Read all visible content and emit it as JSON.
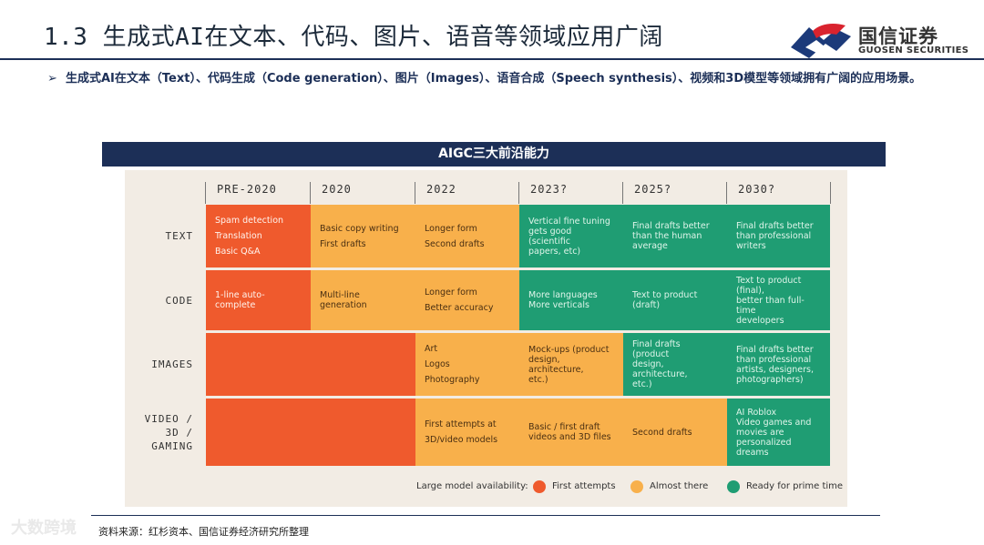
{
  "slide": {
    "title": "1.3 生成式AI在文本、代码、图片、语音等领域应用广阔",
    "bullet": "生成式AI在文本（Text）、代码生成（Code generation）、图片（Images）、语音合成（Speech synthesis）、视频和3D模型等领域拥有广阔的应用场景。",
    "bullet_marker": "➢",
    "source": "资料来源：红杉资本、国信证券经济研究所整理",
    "watermark": "大数跨境"
  },
  "logo": {
    "name_cn": "国信证券",
    "name_en": "GUOSEN SECURITIES",
    "colors": {
      "blue": "#1c3a7a",
      "red": "#d9232e"
    }
  },
  "panel": {
    "title": "AIGC三大前沿能力",
    "columns": [
      "PRE-2020",
      "2020",
      "2022",
      "2023?",
      "2025?",
      "2030?"
    ],
    "rows": [
      {
        "label": [
          "TEXT"
        ],
        "cells": [
          {
            "status": "red",
            "lines": [
              "Spam detection",
              "Translation",
              "Basic Q&A"
            ]
          },
          {
            "status": "amber",
            "lines": [
              "Basic copy writing",
              "First drafts"
            ]
          },
          {
            "status": "amber",
            "lines": [
              "Longer form",
              "Second drafts"
            ]
          },
          {
            "status": "green",
            "lines": [
              "Vertical fine tuning",
              "gets good (scientific",
              "papers, etc)"
            ]
          },
          {
            "status": "green",
            "lines": [
              "Final drafts better",
              "than the human",
              "average"
            ]
          },
          {
            "status": "green",
            "lines": [
              "Final drafts better",
              "than professional",
              "writers"
            ]
          }
        ]
      },
      {
        "label": [
          "CODE"
        ],
        "cells": [
          {
            "status": "red",
            "lines": [
              "1-line auto-complete"
            ]
          },
          {
            "status": "amber",
            "lines": [
              "Multi-line generation"
            ]
          },
          {
            "status": "amber",
            "lines": [
              "Longer form",
              "Better accuracy"
            ]
          },
          {
            "status": "green",
            "lines": [
              "More languages",
              "More verticals"
            ]
          },
          {
            "status": "green",
            "lines": [
              "Text to product (draft)"
            ]
          },
          {
            "status": "green",
            "lines": [
              "Text to product (final),",
              "better than full-time",
              "developers"
            ]
          }
        ]
      },
      {
        "label": [
          "IMAGES"
        ],
        "cells": [
          {
            "status": "red",
            "lines": []
          },
          {
            "status": "red",
            "lines": []
          },
          {
            "status": "amber",
            "lines": [
              "Art",
              "Logos",
              "Photography"
            ]
          },
          {
            "status": "amber",
            "lines": [
              "Mock-ups (product",
              "design, architecture,",
              "etc.)"
            ]
          },
          {
            "status": "green",
            "lines": [
              "Final drafts (product",
              "design, architecture,",
              "etc.)"
            ]
          },
          {
            "status": "green",
            "lines": [
              "Final drafts better",
              "than professional",
              "artists, designers,",
              "photographers)"
            ]
          }
        ]
      },
      {
        "label": [
          "VIDEO /",
          "3D /",
          "GAMING"
        ],
        "cells": [
          {
            "status": "red",
            "lines": []
          },
          {
            "status": "red",
            "lines": []
          },
          {
            "status": "amber",
            "lines": [
              "First attempts at",
              "3D/video models"
            ]
          },
          {
            "status": "amber",
            "lines": [
              "Basic / first draft",
              "videos and 3D files"
            ]
          },
          {
            "status": "amber",
            "lines": [
              "Second drafts"
            ]
          },
          {
            "status": "green",
            "lines": [
              "AI Roblox",
              "Video games and",
              "movies are",
              "personalized dreams"
            ]
          }
        ]
      }
    ],
    "legend": {
      "title": "Large model availability:",
      "items": [
        {
          "status": "red",
          "label": "First attempts"
        },
        {
          "status": "amber",
          "label": "Almost there"
        },
        {
          "status": "green",
          "label": "Ready for prime time"
        }
      ]
    },
    "colors": {
      "red": "#ef5a2d",
      "amber": "#f8b04b",
      "green": "#1f9d73",
      "header": "#1c2f57",
      "panel_bg": "#f2ece4"
    }
  }
}
